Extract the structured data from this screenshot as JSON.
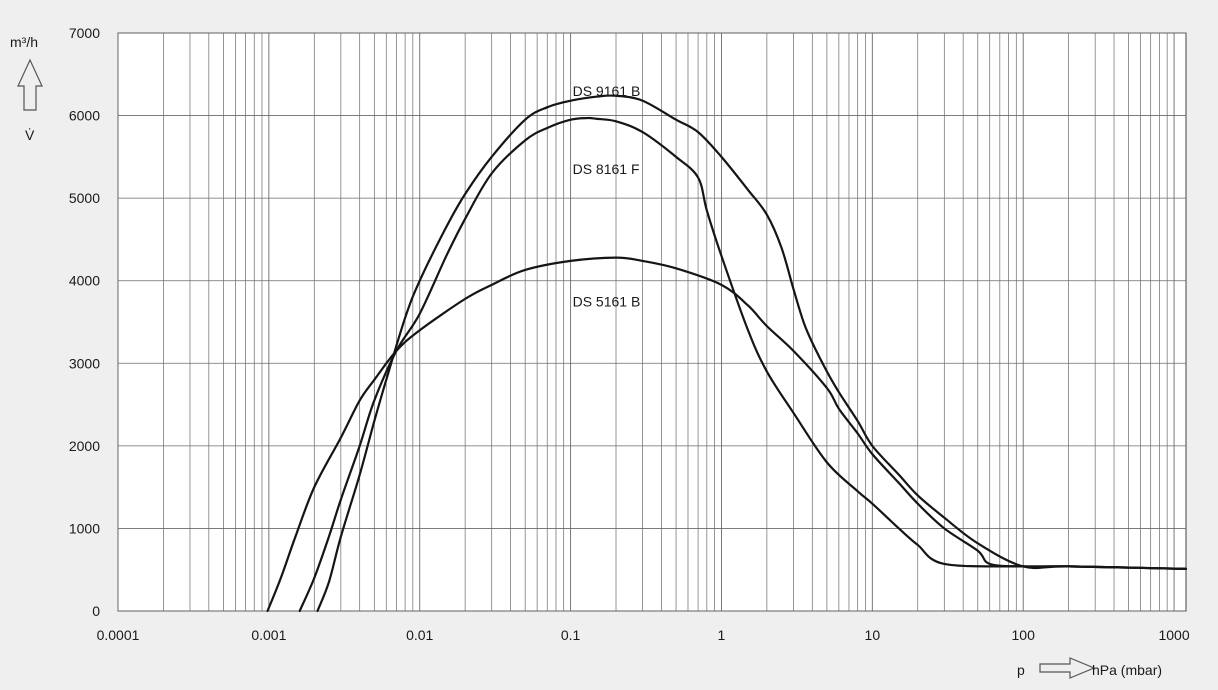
{
  "chart_data": {
    "type": "line",
    "x_scale": "log",
    "xlim": [
      0.0001,
      1200
    ],
    "ylim": [
      0,
      7000
    ],
    "grid": true,
    "ylabel_unit": "m³/h",
    "ylabel_symbol": "V̇",
    "xlabel_symbol": "p",
    "xlabel_unit": "hPa (mbar)",
    "x_ticks": [
      {
        "value": 0.0001,
        "label": "0.0001"
      },
      {
        "value": 0.001,
        "label": "0.001"
      },
      {
        "value": 0.01,
        "label": "0.01"
      },
      {
        "value": 0.1,
        "label": "0.1"
      },
      {
        "value": 1,
        "label": "1"
      },
      {
        "value": 10,
        "label": "10"
      },
      {
        "value": 100,
        "label": "100"
      },
      {
        "value": 1000,
        "label": "1000"
      }
    ],
    "y_ticks": [
      {
        "value": 0,
        "label": "0"
      },
      {
        "value": 1000,
        "label": "1000"
      },
      {
        "value": 2000,
        "label": "2000"
      },
      {
        "value": 3000,
        "label": "3000"
      },
      {
        "value": 4000,
        "label": "4000"
      },
      {
        "value": 5000,
        "label": "5000"
      },
      {
        "value": 6000,
        "label": "6000"
      },
      {
        "value": 7000,
        "label": "7000"
      }
    ],
    "series": [
      {
        "name": "DS 9161 B",
        "label_at": {
          "x": 0.1,
          "y": 6300
        },
        "points": [
          [
            0.0021,
            0
          ],
          [
            0.0025,
            350
          ],
          [
            0.003,
            900
          ],
          [
            0.004,
            1650
          ],
          [
            0.005,
            2300
          ],
          [
            0.006,
            2800
          ],
          [
            0.008,
            3550
          ],
          [
            0.01,
            4000
          ],
          [
            0.015,
            4650
          ],
          [
            0.02,
            5050
          ],
          [
            0.03,
            5500
          ],
          [
            0.05,
            5950
          ],
          [
            0.07,
            6100
          ],
          [
            0.1,
            6180
          ],
          [
            0.15,
            6230
          ],
          [
            0.2,
            6240
          ],
          [
            0.3,
            6180
          ],
          [
            0.5,
            5950
          ],
          [
            0.7,
            5800
          ],
          [
            1,
            5500
          ],
          [
            1.5,
            5100
          ],
          [
            2,
            4800
          ],
          [
            2.5,
            4400
          ],
          [
            3,
            3900
          ],
          [
            3.5,
            3500
          ],
          [
            4,
            3250
          ],
          [
            5,
            2900
          ],
          [
            6,
            2650
          ],
          [
            8,
            2300
          ],
          [
            10,
            2000
          ],
          [
            15,
            1650
          ],
          [
            20,
            1400
          ],
          [
            30,
            1130
          ],
          [
            50,
            820
          ],
          [
            100,
            540
          ],
          [
            200,
            540
          ],
          [
            1200,
            510
          ]
        ]
      },
      {
        "name": "DS 8161 F",
        "label_at": {
          "x": 0.1,
          "y": 5350
        },
        "points": [
          [
            0.0016,
            0
          ],
          [
            0.002,
            400
          ],
          [
            0.0025,
            900
          ],
          [
            0.003,
            1350
          ],
          [
            0.004,
            2000
          ],
          [
            0.005,
            2550
          ],
          [
            0.007,
            3150
          ],
          [
            0.01,
            3600
          ],
          [
            0.015,
            4300
          ],
          [
            0.02,
            4750
          ],
          [
            0.03,
            5300
          ],
          [
            0.05,
            5700
          ],
          [
            0.07,
            5850
          ],
          [
            0.1,
            5950
          ],
          [
            0.13,
            5970
          ],
          [
            0.15,
            5960
          ],
          [
            0.2,
            5930
          ],
          [
            0.3,
            5800
          ],
          [
            0.5,
            5500
          ],
          [
            0.7,
            5250
          ],
          [
            0.8,
            4850
          ],
          [
            1,
            4300
          ],
          [
            1.5,
            3400
          ],
          [
            2,
            2900
          ],
          [
            3,
            2400
          ],
          [
            5,
            1800
          ],
          [
            8,
            1450
          ],
          [
            10,
            1300
          ],
          [
            15,
            1000
          ],
          [
            20,
            800
          ],
          [
            30,
            570
          ],
          [
            100,
            540
          ],
          [
            200,
            540
          ],
          [
            1200,
            510
          ]
        ]
      },
      {
        "name": "DS 5161 B",
        "label_at": {
          "x": 0.1,
          "y": 3750
        },
        "points": [
          [
            0.00098,
            0
          ],
          [
            0.0012,
            400
          ],
          [
            0.0015,
            900
          ],
          [
            0.002,
            1500
          ],
          [
            0.003,
            2100
          ],
          [
            0.004,
            2550
          ],
          [
            0.005,
            2800
          ],
          [
            0.007,
            3150
          ],
          [
            0.01,
            3400
          ],
          [
            0.02,
            3780
          ],
          [
            0.03,
            3950
          ],
          [
            0.05,
            4130
          ],
          [
            0.1,
            4240
          ],
          [
            0.2,
            4280
          ],
          [
            0.3,
            4240
          ],
          [
            0.5,
            4150
          ],
          [
            1,
            3950
          ],
          [
            1.5,
            3700
          ],
          [
            2,
            3450
          ],
          [
            3,
            3150
          ],
          [
            5,
            2700
          ],
          [
            6,
            2450
          ],
          [
            8,
            2150
          ],
          [
            10,
            1900
          ],
          [
            15,
            1550
          ],
          [
            20,
            1300
          ],
          [
            30,
            1000
          ],
          [
            50,
            730
          ],
          [
            60,
            570
          ],
          [
            100,
            540
          ],
          [
            200,
            540
          ],
          [
            1200,
            510
          ]
        ]
      }
    ]
  }
}
